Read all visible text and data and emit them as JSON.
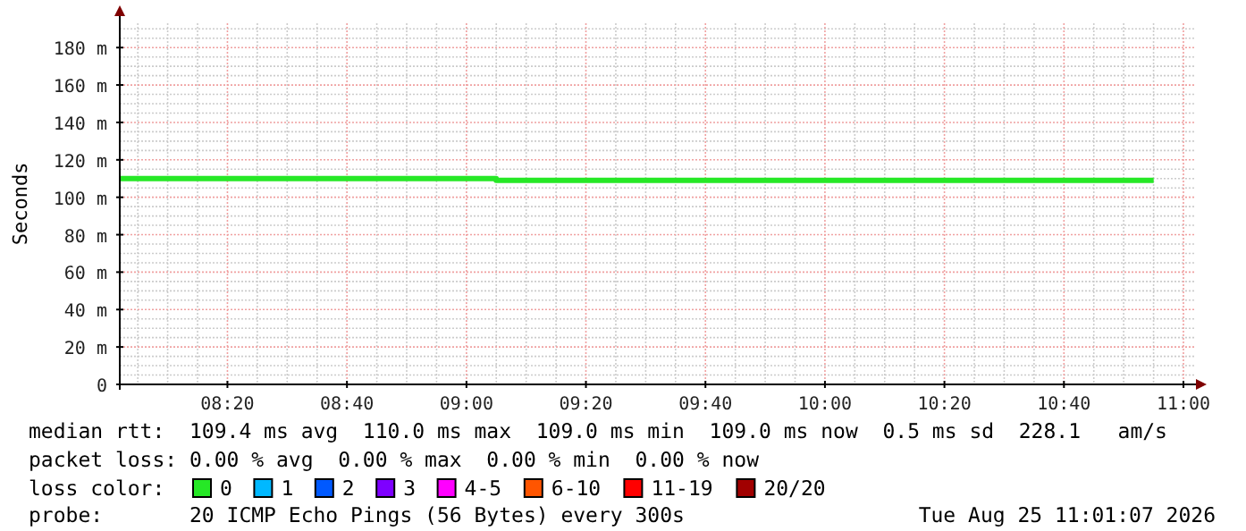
{
  "chart_data": {
    "type": "step",
    "ylabel": "Seconds",
    "xlim": [
      8.033,
      11.0
    ],
    "xticks": [
      {
        "value": 8.3333,
        "label": "08:20"
      },
      {
        "value": 8.6667,
        "label": "08:40"
      },
      {
        "value": 9.0,
        "label": "09:00"
      },
      {
        "value": 9.3333,
        "label": "09:20"
      },
      {
        "value": 9.6667,
        "label": "09:40"
      },
      {
        "value": 10.0,
        "label": "10:00"
      },
      {
        "value": 10.3333,
        "label": "10:20"
      },
      {
        "value": 10.6667,
        "label": "10:40"
      },
      {
        "value": 11.0,
        "label": "11:00"
      }
    ],
    "ylim": [
      0,
      193
    ],
    "yticks": [
      {
        "value": 0,
        "label": "0"
      },
      {
        "value": 20,
        "label": "20 m"
      },
      {
        "value": 40,
        "label": "40 m"
      },
      {
        "value": 60,
        "label": "60 m"
      },
      {
        "value": 80,
        "label": "80 m"
      },
      {
        "value": 100,
        "label": "100 m"
      },
      {
        "value": 120,
        "label": "120 m"
      },
      {
        "value": 140,
        "label": "140 m"
      },
      {
        "value": 160,
        "label": "160 m"
      },
      {
        "value": 180,
        "label": "180 m"
      }
    ],
    "grid": true,
    "legend": "bottom",
    "legend_title": "loss color:",
    "line_style": "solid",
    "marker": "none",
    "x": [
      8.033,
      9.083,
      9.167,
      10.917
    ],
    "series": [
      {
        "name": "0",
        "color": "#26e826",
        "values": [
          110,
          109,
          109,
          109
        ]
      },
      {
        "name": "1",
        "color": "#00b8ff",
        "values": [
          null,
          null,
          null,
          null
        ]
      },
      {
        "name": "2",
        "color": "#0059ff",
        "values": [
          null,
          null,
          null,
          null
        ]
      },
      {
        "name": "3",
        "color": "#7e00ff",
        "values": [
          null,
          null,
          null,
          null
        ]
      },
      {
        "name": "4-5",
        "color": "#ff00ff",
        "values": [
          null,
          null,
          null,
          null
        ]
      },
      {
        "name": "6-10",
        "color": "#ff5500",
        "values": [
          null,
          null,
          null,
          null
        ]
      },
      {
        "name": "11-19",
        "color": "#ff0000",
        "values": [
          null,
          null,
          null,
          null
        ]
      },
      {
        "name": "20/20",
        "color": "#a10000",
        "values": [
          null,
          null,
          null,
          null
        ]
      }
    ],
    "annotations": [
      "median rtt:  109.4 ms avg  110.0 ms max  109.0 ms min  109.0 ms now  0.5 ms sd  228.1   am/s",
      "packet loss: 0.00 % avg  0.00 % max  0.00 % min  0.00 % now",
      "probe:       20 ICMP Echo Pings (56 Bytes) every 300s",
      "Tue Aug 25 11:01:07 2026"
    ]
  }
}
